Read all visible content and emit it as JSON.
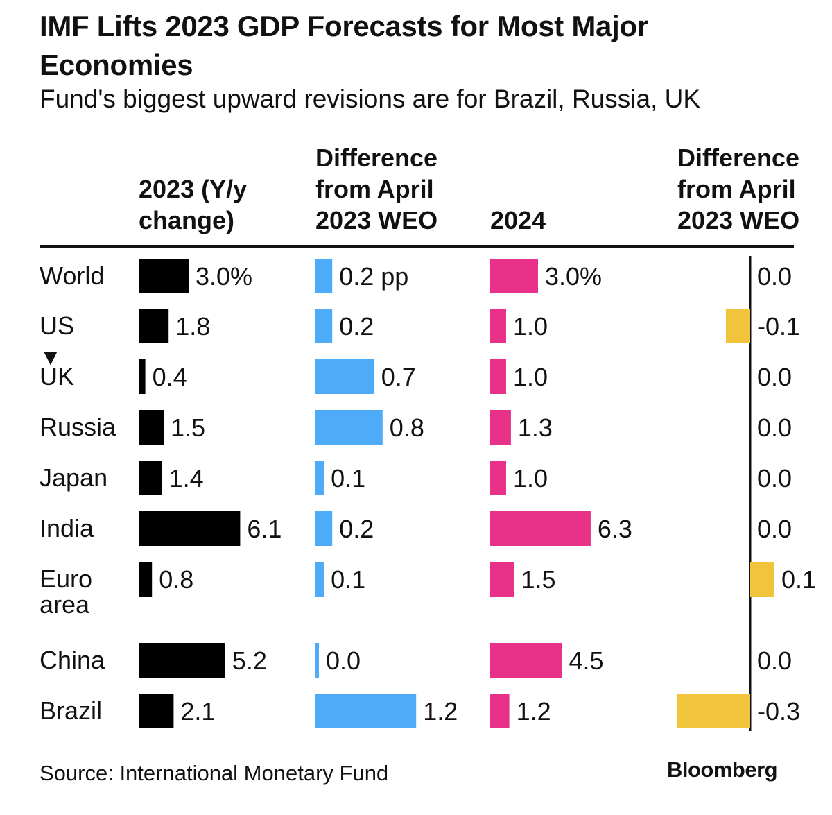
{
  "title": "IMF Lifts 2023 GDP Forecasts for Most Major Economies",
  "subtitle": "Fund's biggest upward revisions are for Brazil, Russia, UK",
  "sort_indicator": "▼",
  "footer": {
    "source": "Source: International Monetary Fund",
    "brand": "Bloomberg"
  },
  "chart_data": {
    "type": "bar",
    "orientation": "horizontal",
    "title": "IMF Lifts 2023 GDP Forecasts for Most Major Economies",
    "subtitle": "Fund's biggest upward revisions are for Brazil, Russia, UK",
    "categories": [
      "World",
      "US",
      "UK",
      "Russia",
      "Japan",
      "India",
      "Euro\narea",
      "China",
      "Brazil"
    ],
    "series": [
      {
        "name": "2023 (Y/y\nchange)",
        "color": "#000000",
        "values": [
          3.0,
          1.8,
          0.4,
          1.5,
          1.4,
          6.1,
          0.8,
          5.2,
          2.1
        ],
        "labels": [
          "3.0%",
          "1.8",
          "0.4",
          "1.5",
          "1.4",
          "6.1",
          "0.8",
          "5.2",
          "2.1"
        ]
      },
      {
        "name": "Difference\nfrom April\n2023 WEO",
        "color": "#4dabf7",
        "values": [
          0.2,
          0.2,
          0.7,
          0.8,
          0.1,
          0.2,
          0.1,
          0.0,
          1.2
        ],
        "labels": [
          "0.2 pp",
          "0.2",
          "0.7",
          "0.8",
          "0.1",
          "0.2",
          "0.1",
          "0.0",
          "1.2"
        ]
      },
      {
        "name": "2024",
        "color": "#e8328a",
        "values": [
          3.0,
          1.0,
          1.0,
          1.3,
          1.0,
          6.3,
          1.5,
          4.5,
          1.2
        ],
        "labels": [
          "3.0%",
          "1.0",
          "1.0",
          "1.3",
          "1.0",
          "6.3",
          "1.5",
          "4.5",
          "1.2"
        ]
      },
      {
        "name": "Difference\nfrom April\n2023 WEO",
        "color": "#f2c43d",
        "values": [
          0.0,
          -0.1,
          0.0,
          0.0,
          0.0,
          0.0,
          0.1,
          0.0,
          -0.3
        ],
        "labels": [
          "0.0",
          "-0.1",
          "0.0",
          "0.0",
          "0.0",
          "0.0",
          "0.1",
          "0.0",
          "-0.3"
        ]
      }
    ]
  }
}
